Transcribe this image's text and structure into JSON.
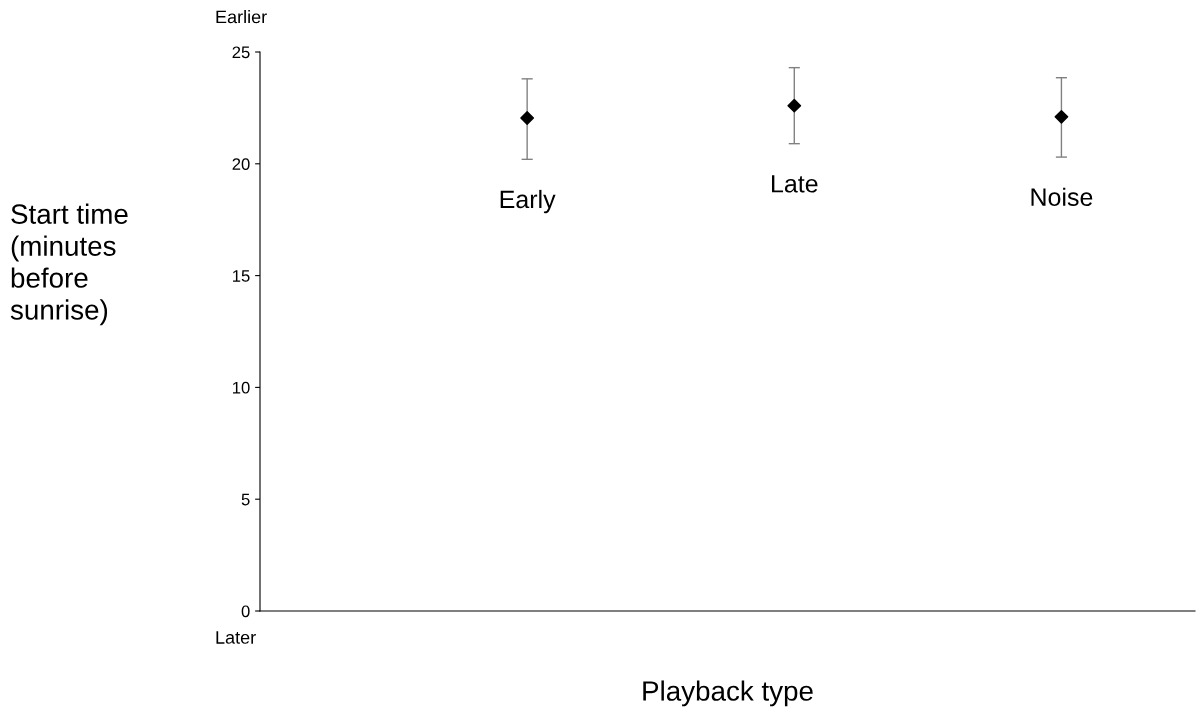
{
  "chart_data": {
    "type": "scatter",
    "xlabel": "Playback type",
    "ylabel": "Start time\n(minutes\nbefore\nsunrise)",
    "categories": [
      "Early",
      "Late",
      "Noise"
    ],
    "values": [
      22.05,
      22.6,
      22.1
    ],
    "errors": [
      [
        20.2,
        23.8
      ],
      [
        20.9,
        24.3
      ],
      [
        20.3,
        23.85
      ]
    ],
    "color": "#000000",
    "marker": "diamond",
    "ylim": [
      0,
      25
    ],
    "yticks": [
      0,
      5,
      10,
      15,
      20,
      25
    ],
    "grid": false,
    "legend": false,
    "annotations": [
      "Earlier",
      "Later"
    ]
  }
}
